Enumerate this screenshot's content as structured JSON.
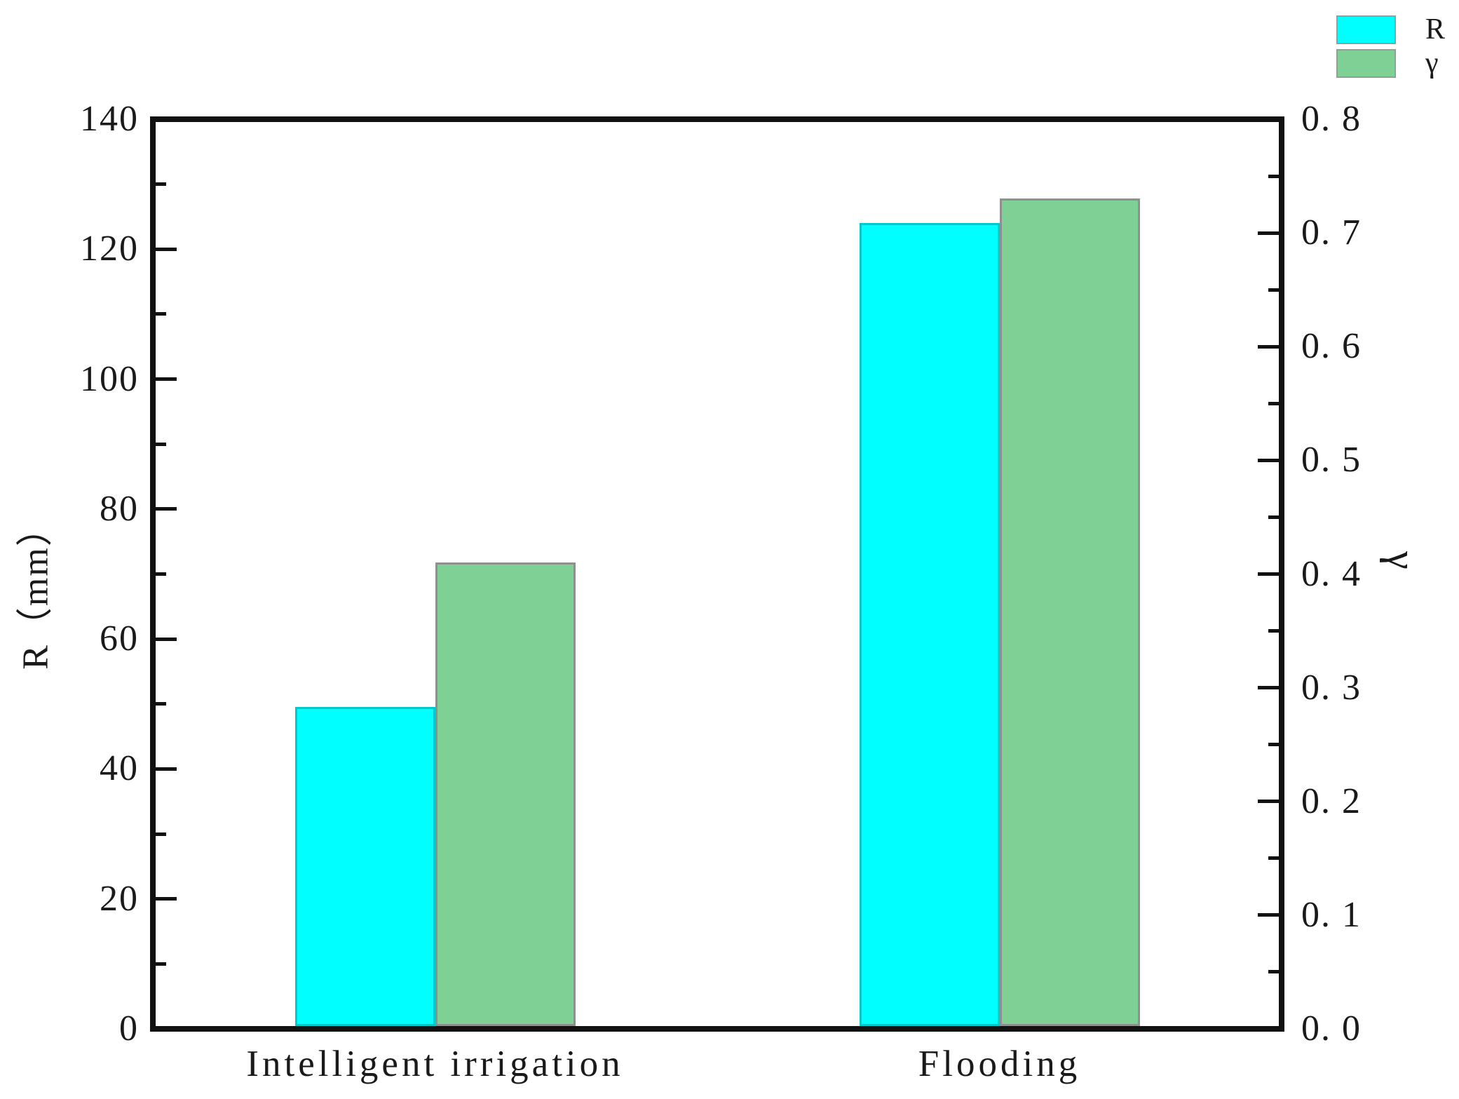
{
  "figure": {
    "background": "#ffffff",
    "axis_color": "#111111",
    "text_color": "#1a1a1a"
  },
  "chart_data": {
    "type": "bar",
    "title": "",
    "categories": [
      "Intelligent irrigation",
      "Flooding"
    ],
    "series": [
      {
        "name": "R",
        "axis": "left",
        "fill_color": "#00ffff",
        "edge_color": "#00c9c9",
        "values": [
          49.5,
          124
        ]
      },
      {
        "name": "γ",
        "axis": "right",
        "fill_color": "#7ed094",
        "edge_color": "#8f8f8f",
        "values": [
          0.41,
          0.73
        ]
      }
    ],
    "left_axis": {
      "label": "R（mm）",
      "lim": [
        0,
        140
      ],
      "major_ticks": [
        0,
        20,
        40,
        60,
        80,
        100,
        120,
        140
      ],
      "tick_labels": [
        "0",
        "20",
        "40",
        "60",
        "80",
        "100",
        "120",
        "140"
      ],
      "minor_step": 10
    },
    "right_axis": {
      "label": "γ",
      "lim": [
        0,
        0.8
      ],
      "major_ticks": [
        0,
        0.1,
        0.2,
        0.3,
        0.4,
        0.5,
        0.6,
        0.7,
        0.8
      ],
      "tick_labels": [
        "0. 0",
        "0. 1",
        "0. 2",
        "0. 3",
        "0. 4",
        "0. 5",
        "0. 6",
        "0. 7",
        "0. 8"
      ],
      "minor_step": 0.05
    },
    "x_axis": {
      "tick_labels_visible": true,
      "ticks_visible": false
    },
    "legend": {
      "position": "top-right-outside",
      "entries": [
        {
          "label": "R",
          "color": "#00ffff"
        },
        {
          "label": "γ",
          "color": "#7ed094"
        }
      ]
    },
    "grid": false
  }
}
